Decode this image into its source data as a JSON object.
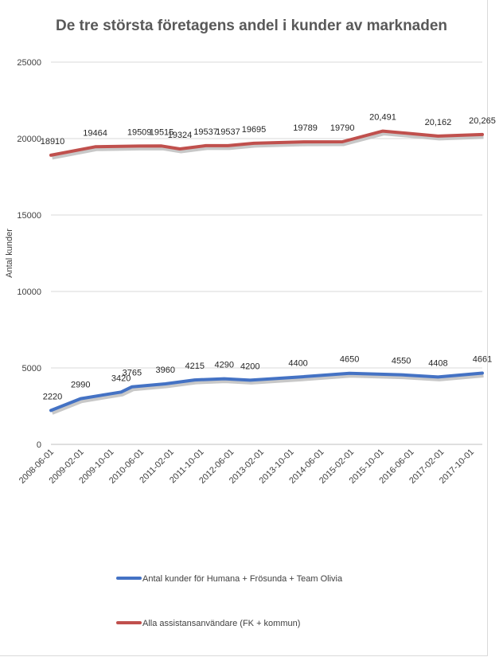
{
  "chart_data": {
    "type": "line",
    "title": "De tre största företagens andel i kunder av marknaden",
    "ylabel": "Antal kunder",
    "xlabel": "",
    "ylim": [
      0,
      25000
    ],
    "yticks": [
      "0",
      "5000",
      "10000",
      "15000",
      "20000",
      "25000"
    ],
    "ytick_values": [
      0,
      5000,
      10000,
      15000,
      20000,
      25000
    ],
    "x_tick_labels": [
      "2008-06-01",
      "2009-02-01",
      "2009-10-01",
      "2010-06-01",
      "2011-02-01",
      "2011-10-01",
      "2012-06-01",
      "2013-02-01",
      "2013-10-01",
      "2014-06-01",
      "2015-02-01",
      "2015-10-01",
      "2016-06-01",
      "2017-02-01",
      "2017-10-01"
    ],
    "grid": "horizontal",
    "legend_position": "bottom",
    "series": [
      {
        "name": "Antal kunder för Humana + Frösunda + Team Olivia",
        "color": "#4472c4",
        "points": [
          {
            "x": "2008-06-01",
            "y": 2220,
            "label": "2220"
          },
          {
            "x": "2009-02-01",
            "y": 2990,
            "label": "2990"
          },
          {
            "x": "2010-01-01",
            "y": 3420,
            "label": "3420"
          },
          {
            "x": "2010-04-01",
            "y": 3765,
            "label": "3765"
          },
          {
            "x": "2011-01-01",
            "y": 3960,
            "label": "3960"
          },
          {
            "x": "2011-09-01",
            "y": 4215,
            "label": "4215"
          },
          {
            "x": "2012-05-01",
            "y": 4290,
            "label": "4290"
          },
          {
            "x": "2012-12-01",
            "y": 4200,
            "label": "4200"
          },
          {
            "x": "2014-01-01",
            "y": 4400,
            "label": "4400"
          },
          {
            "x": "2015-03-01",
            "y": 4650,
            "label": "4650"
          },
          {
            "x": "2016-05-01",
            "y": 4550,
            "label": "4550"
          },
          {
            "x": "2017-03-01",
            "y": 4408,
            "label": "4408"
          },
          {
            "x": "2018-03-01",
            "y": 4661,
            "label": "4661"
          }
        ]
      },
      {
        "name": "Alla  assistansanvändare (FK + kommun)",
        "color": "#c0504d",
        "points": [
          {
            "x": "2008-06-01",
            "y": 18910,
            "label": "18910"
          },
          {
            "x": "2009-06-01",
            "y": 19464,
            "label": "19464"
          },
          {
            "x": "2010-06-01",
            "y": 19509,
            "label": "19509"
          },
          {
            "x": "2010-12-01",
            "y": 19515,
            "label": "19515"
          },
          {
            "x": "2011-05-01",
            "y": 19324,
            "label": "19324"
          },
          {
            "x": "2011-12-01",
            "y": 19537,
            "label": "19537"
          },
          {
            "x": "2012-06-01",
            "y": 19537,
            "label": "19537"
          },
          {
            "x": "2013-01-01",
            "y": 19695,
            "label": "19695"
          },
          {
            "x": "2014-03-01",
            "y": 19789,
            "label": "19789"
          },
          {
            "x": "2015-01-01",
            "y": 19790,
            "label": "19790"
          },
          {
            "x": "2015-12-01",
            "y": 20491,
            "label": "20,491"
          },
          {
            "x": "2017-03-01",
            "y": 20162,
            "label": "20,162"
          },
          {
            "x": "2018-03-01",
            "y": 20265,
            "label": "20,265"
          }
        ]
      }
    ]
  }
}
